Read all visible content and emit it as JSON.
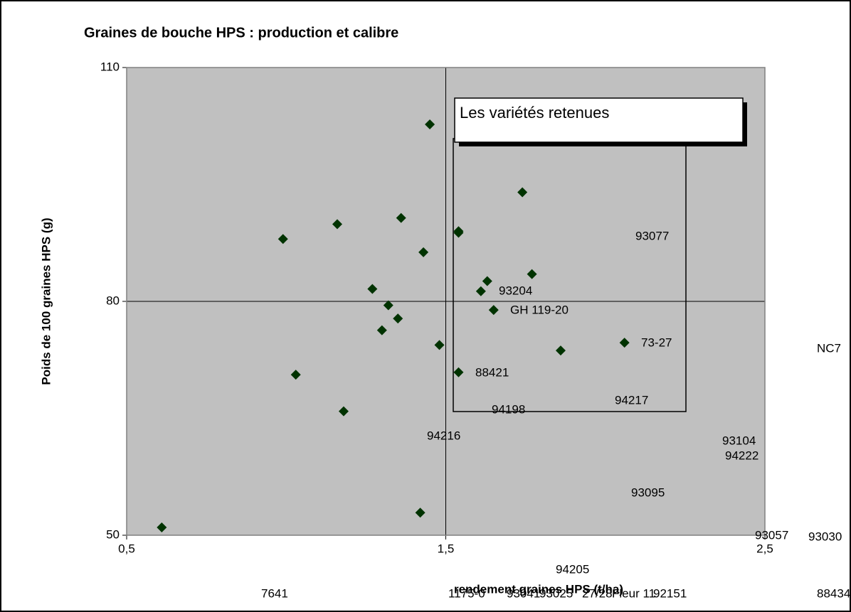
{
  "chart_data": {
    "type": "scatter",
    "title": "Graines de bouche HPS : production et calibre",
    "x_label": "rendement graines HPS (t/ha)",
    "y_label": "Poids de 100 graines HPS (g)",
    "legend_box": "Les variétés retenues",
    "xlim": [
      0.5,
      2.5
    ],
    "ylim": [
      50,
      110
    ],
    "xticks": [
      {
        "value": 0.5,
        "label": "0,5"
      },
      {
        "value": 1.5,
        "label": "1,5"
      },
      {
        "value": 2.5,
        "label": "2,5"
      }
    ],
    "yticks": [
      50,
      80,
      110
    ],
    "grid": true,
    "series": [
      {
        "color": "#003300",
        "x": [
          1.45,
          1.74,
          1.36,
          1.16,
          1.54,
          1.54,
          0.99,
          1.43,
          1.77,
          1.63,
          1.27,
          1.61,
          1.32,
          1.65,
          1.35,
          1.3,
          2.06,
          1.48,
          1.86,
          1.54,
          1.03,
          1.18,
          1.42,
          0.61
        ],
        "values": [
          102.7,
          94.0,
          90.7,
          89.9,
          89.0,
          88.8,
          88.0,
          86.3,
          83.5,
          82.6,
          81.6,
          81.3,
          79.5,
          78.9,
          77.8,
          76.3,
          74.7,
          74.4,
          73.7,
          70.9,
          70.6,
          65.9,
          52.9,
          51.0
        ]
      }
    ],
    "annotations": [
      "93077",
      "93204",
      "GH 119-20",
      "73-27",
      "NC7",
      "88421",
      "94217",
      "94198",
      "94216",
      "93104",
      "94222",
      "93095",
      "93057",
      "93030",
      "94205",
      "7641",
      "1175-0",
      "93041",
      "93025",
      "27/28",
      "Fleur 11",
      "92151",
      "88434"
    ]
  }
}
